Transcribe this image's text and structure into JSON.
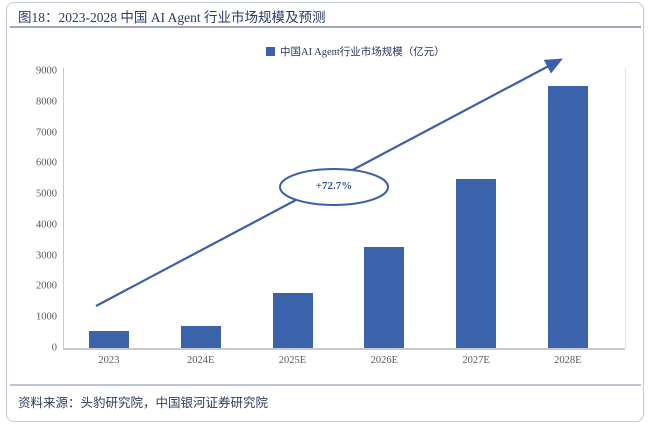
{
  "header": {
    "title": "图18：2023-2028 中国 AI Agent 行业市场规模及预测"
  },
  "legend": {
    "label": "中国AI Agent行业市场规模（亿元）",
    "swatch_color": "#3b63ab"
  },
  "chart_data": {
    "type": "bar",
    "title": "图18：2023-2028 中国 AI Agent 行业市场规模及预测",
    "categories": [
      "2023",
      "2024E",
      "2025E",
      "2026E",
      "2027E",
      "2028E"
    ],
    "values": [
      554,
      721,
      1782,
      3272,
      5497,
      8520
    ],
    "series_name": "中国AI Agent行业市场规模（亿元）",
    "unit": "亿元",
    "ylim": [
      0,
      9000
    ],
    "ytick_step": 1000,
    "yticks": [
      0,
      1000,
      2000,
      3000,
      4000,
      5000,
      6000,
      7000,
      8000,
      9000
    ],
    "grid": false,
    "legend_position": "top-center",
    "bar_color": "#3b63ab",
    "axis_label_color": "#595959",
    "annotation": {
      "text": "+72.7%",
      "shape": "white ellipse over rising trend arrow",
      "arrow_color": "#3d5fa9"
    }
  },
  "footer": {
    "source": "资料来源：头豹研究院，中国银河证券研究院"
  }
}
